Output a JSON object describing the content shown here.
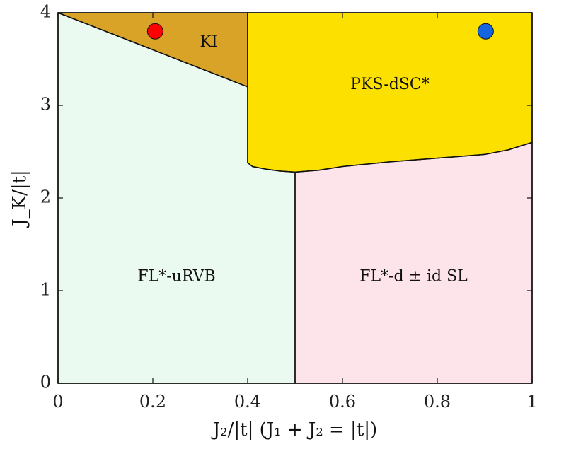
{
  "chart_data": {
    "type": "area",
    "title": "",
    "xlabel": "J₂/|t| (J₁ + J₂ = |t|)",
    "ylabel": "J_K/|t|",
    "xlim": [
      0,
      1
    ],
    "ylim": [
      0,
      4
    ],
    "x_ticks": [
      0,
      0.2,
      0.4,
      0.6,
      0.8,
      1
    ],
    "x_tick_labels": [
      "0",
      "0.2",
      "0.4",
      "0.6",
      "0.8",
      "1"
    ],
    "y_ticks": [
      0,
      1,
      2,
      3,
      4
    ],
    "y_tick_labels": [
      "0",
      "1",
      "2",
      "3",
      "4"
    ],
    "grid": false,
    "regions": [
      {
        "label": "FL*-uRVB",
        "color": "#ebfaf1",
        "label_at": [
          0.25,
          1.15
        ],
        "polygon": [
          [
            0,
            0
          ],
          [
            0.5,
            0
          ],
          [
            0.5,
            2.28
          ],
          [
            0.47,
            2.29
          ],
          [
            0.44,
            2.31
          ],
          [
            0.41,
            2.34
          ],
          [
            0.4,
            2.38
          ],
          [
            0.4,
            3.2
          ],
          [
            0,
            4
          ]
        ]
      },
      {
        "label": "FL*-d ± id SL",
        "color": "#fde4ea",
        "label_at": [
          0.75,
          1.15
        ],
        "polygon": [
          [
            0.5,
            0
          ],
          [
            1,
            0
          ],
          [
            1,
            2.6
          ],
          [
            0.95,
            2.52
          ],
          [
            0.9,
            2.47
          ],
          [
            0.8,
            2.43
          ],
          [
            0.7,
            2.39
          ],
          [
            0.6,
            2.34
          ],
          [
            0.55,
            2.3
          ],
          [
            0.5,
            2.28
          ]
        ]
      },
      {
        "label": "KI",
        "color": "#d8a327",
        "label_at": [
          0.318,
          3.68
        ],
        "polygon": [
          [
            0,
            4
          ],
          [
            0.4,
            4
          ],
          [
            0.4,
            3.2
          ]
        ]
      },
      {
        "label": "PKS-dSC*",
        "color": "#fbe000",
        "label_at": [
          0.7,
          3.22
        ],
        "polygon": [
          [
            0.4,
            4
          ],
          [
            1,
            4
          ],
          [
            1,
            2.6
          ],
          [
            0.95,
            2.52
          ],
          [
            0.9,
            2.47
          ],
          [
            0.8,
            2.43
          ],
          [
            0.7,
            2.39
          ],
          [
            0.6,
            2.34
          ],
          [
            0.55,
            2.3
          ],
          [
            0.5,
            2.28
          ],
          [
            0.47,
            2.29
          ],
          [
            0.44,
            2.31
          ],
          [
            0.41,
            2.34
          ],
          [
            0.4,
            2.38
          ]
        ]
      }
    ],
    "points": [
      {
        "x": 0.205,
        "y": 3.8,
        "color": "#ff0000"
      },
      {
        "x": 0.902,
        "y": 3.8,
        "color": "#1565e0"
      }
    ]
  }
}
